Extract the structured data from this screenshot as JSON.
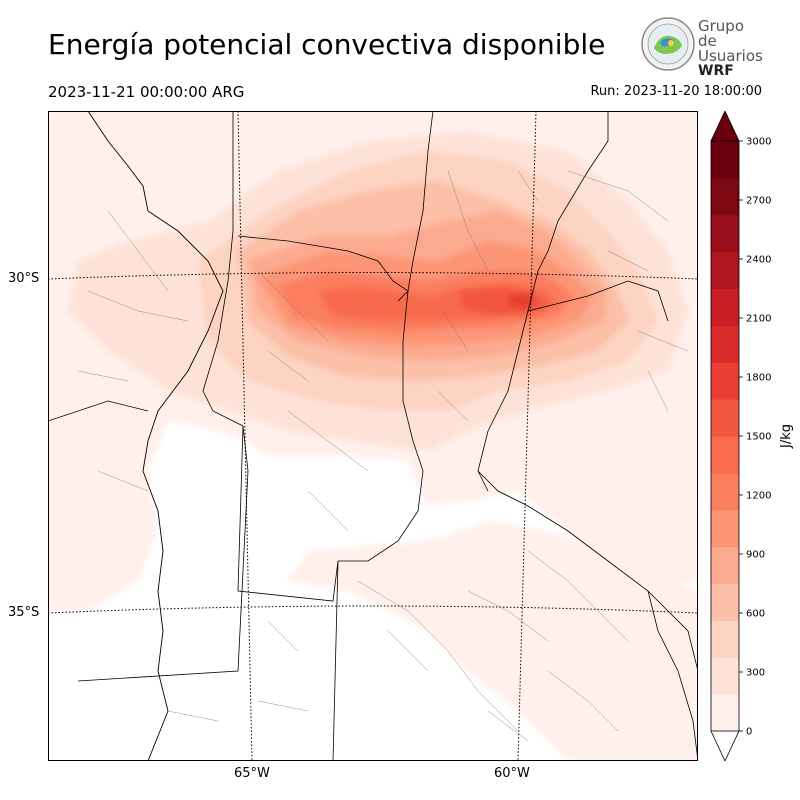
{
  "header": {
    "title": "Energía potencial convectiva disponible",
    "valid_time": "2023-11-21 00:00:00 ARG",
    "run_time": "Run: 2023-11-20 18:00:00"
  },
  "logo": {
    "line1": "Grupo de",
    "line2": "Usuarios",
    "line3": "WRF"
  },
  "map": {
    "lat_labels": [
      "30°S",
      "35°S"
    ],
    "lon_labels": [
      "65°W",
      "60°W"
    ],
    "lat_values": [
      -30,
      -35
    ],
    "lon_values": [
      -65,
      -60
    ],
    "background": "#ffffff",
    "border_color": "#000000"
  },
  "colorbar": {
    "label": "J/kg",
    "ticks": [
      "0",
      "300",
      "600",
      "900",
      "1200",
      "1500",
      "1800",
      "2100",
      "2400",
      "2700",
      "3000"
    ],
    "levels": [
      0,
      150,
      300,
      450,
      600,
      750,
      900,
      1050,
      1200,
      1350,
      1500,
      1650,
      1800,
      1950,
      2100,
      2250,
      2400,
      2550,
      2700,
      2850,
      3000
    ],
    "colors": [
      "#fff0eb",
      "#fee2d7",
      "#fdd3c1",
      "#fcbfa7",
      "#fcaa8f",
      "#fc9576",
      "#fb7e5e",
      "#f86b4d",
      "#f3573f",
      "#e83e33",
      "#d92b2b",
      "#c81d25",
      "#b01620",
      "#990d1c",
      "#7c0812",
      "#6a000d"
    ],
    "extend": "both"
  }
}
